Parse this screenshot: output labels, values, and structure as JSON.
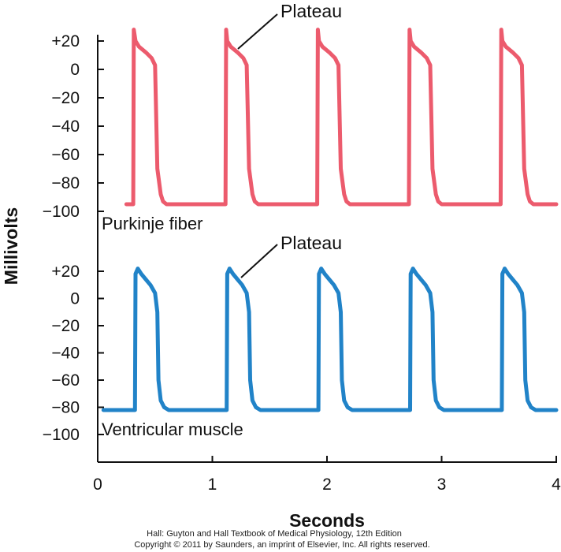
{
  "chart_data": [
    {
      "type": "line",
      "panel_label": "Purkinje fiber",
      "annotation": "Plateau",
      "color": "#ec5b6d",
      "ylabel": "Millivolts",
      "xlabel": "Seconds",
      "xlim": [
        0,
        4
      ],
      "ylim": [
        -100,
        20
      ],
      "y_ticks": [
        "+20",
        "0",
        "−20",
        "−40",
        "−60",
        "−80",
        "−100"
      ],
      "y_tick_values": [
        20,
        0,
        -20,
        -40,
        -60,
        -80,
        -100
      ],
      "series": [
        {
          "x": [
            0.25,
            0.31,
            0.315,
            0.33,
            0.36,
            0.42,
            0.47,
            0.5,
            0.52,
            0.55,
            0.57,
            0.6,
            0.7,
            0.8,
            0.9,
            1.0,
            1.07,
            1.115,
            1.12,
            1.13,
            1.16,
            1.22,
            1.27,
            1.3,
            1.32,
            1.35,
            1.37,
            1.4,
            1.5,
            1.6,
            1.7,
            1.8,
            1.875,
            1.915,
            1.92,
            1.93,
            1.96,
            2.02,
            2.07,
            2.1,
            2.12,
            2.15,
            2.17,
            2.2,
            2.3,
            2.4,
            2.5,
            2.6,
            2.675,
            2.715,
            2.72,
            2.73,
            2.76,
            2.82,
            2.87,
            2.9,
            2.92,
            2.95,
            2.97,
            3.0,
            3.1,
            3.2,
            3.3,
            3.4,
            3.475,
            3.515,
            3.52,
            3.53,
            3.56,
            3.62,
            3.67,
            3.7,
            3.72,
            3.75,
            3.77,
            3.8,
            3.9,
            4.0
          ],
          "y": [
            -95,
            -95,
            28,
            20,
            16,
            12,
            8,
            3,
            -70,
            -88,
            -93,
            -95,
            -95,
            -95,
            -95,
            -95,
            -95,
            -95,
            28,
            20,
            16,
            12,
            8,
            3,
            -70,
            -88,
            -93,
            -95,
            -95,
            -95,
            -95,
            -95,
            -95,
            -95,
            28,
            20,
            16,
            12,
            8,
            3,
            -70,
            -88,
            -93,
            -95,
            -95,
            -95,
            -95,
            -95,
            -95,
            -95,
            28,
            20,
            16,
            12,
            8,
            3,
            -70,
            -88,
            -93,
            -95,
            -95,
            -95,
            -95,
            -95,
            -95,
            -95,
            28,
            20,
            16,
            12,
            8,
            3,
            -70,
            -88,
            -93,
            -95,
            -95,
            -95
          ]
        }
      ]
    },
    {
      "type": "line",
      "panel_label": "Ventricular muscle",
      "annotation": "Plateau",
      "color": "#2183c8",
      "ylabel": "Millivolts",
      "xlabel": "Seconds",
      "xlim": [
        0,
        4
      ],
      "ylim": [
        -100,
        20
      ],
      "y_ticks": [
        "+20",
        "0",
        "−20",
        "−40",
        "−60",
        "−80",
        "−100"
      ],
      "y_tick_values": [
        20,
        0,
        -20,
        -40,
        -60,
        -80,
        -100
      ],
      "series": [
        {
          "x": [
            0.05,
            0.15,
            0.25,
            0.3,
            0.325,
            0.33,
            0.35,
            0.38,
            0.42,
            0.46,
            0.5,
            0.52,
            0.53,
            0.55,
            0.58,
            0.62,
            0.7,
            0.8,
            0.9,
            1.0,
            1.08,
            1.125,
            1.13,
            1.15,
            1.18,
            1.22,
            1.26,
            1.3,
            1.32,
            1.33,
            1.35,
            1.38,
            1.42,
            1.5,
            1.6,
            1.7,
            1.8,
            1.88,
            1.925,
            1.93,
            1.95,
            1.98,
            2.02,
            2.06,
            2.1,
            2.12,
            2.13,
            2.15,
            2.18,
            2.22,
            2.3,
            2.4,
            2.5,
            2.6,
            2.68,
            2.725,
            2.73,
            2.75,
            2.78,
            2.82,
            2.86,
            2.9,
            2.92,
            2.93,
            2.95,
            2.98,
            3.02,
            3.1,
            3.2,
            3.3,
            3.4,
            3.48,
            3.525,
            3.53,
            3.55,
            3.58,
            3.62,
            3.66,
            3.7,
            3.72,
            3.73,
            3.75,
            3.78,
            3.82,
            3.9,
            4.0
          ],
          "y": [
            -82,
            -82,
            -82,
            -82,
            -82,
            18,
            22,
            18,
            14,
            10,
            4,
            -10,
            -60,
            -75,
            -80,
            -82,
            -82,
            -82,
            -82,
            -82,
            -82,
            -82,
            18,
            22,
            18,
            14,
            10,
            4,
            -10,
            -60,
            -75,
            -80,
            -82,
            -82,
            -82,
            -82,
            -82,
            -82,
            -82,
            18,
            22,
            18,
            14,
            10,
            4,
            -10,
            -60,
            -75,
            -80,
            -82,
            -82,
            -82,
            -82,
            -82,
            -82,
            -82,
            18,
            22,
            18,
            14,
            10,
            4,
            -10,
            -60,
            -75,
            -80,
            -82,
            -82,
            -82,
            -82,
            -82,
            -82,
            -82,
            18,
            22,
            18,
            14,
            10,
            4,
            -10,
            -60,
            -75,
            -80,
            -82,
            -82,
            -82
          ]
        }
      ]
    }
  ],
  "axes": {
    "ylabel": "Millivolts",
    "xlabel": "Seconds",
    "x_ticks": [
      "0",
      "1",
      "2",
      "3",
      "4"
    ],
    "x_tick_values": [
      0,
      1,
      2,
      3,
      4
    ]
  },
  "credit": {
    "line1": "Hall: Guyton and Hall Textbook of Medical Physiology, 12th Edition",
    "line2": "Copyright © 2011 by Saunders, an imprint of Elsevier, Inc. All rights reserved."
  }
}
